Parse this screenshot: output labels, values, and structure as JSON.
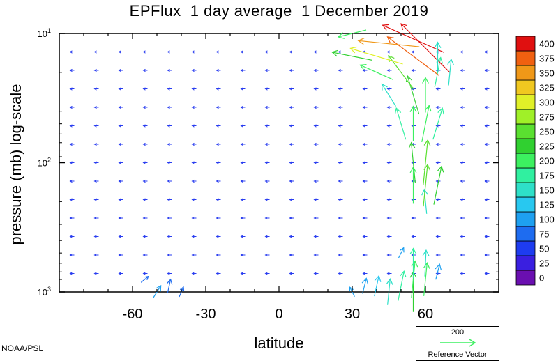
{
  "chart_data": {
    "type": "vector-field",
    "title": "EPFlux  1 day average  1 December 2019",
    "xlabel": "latitude",
    "ylabel": "pressure (mb)  log-scale",
    "xlim": [
      -90,
      90
    ],
    "ylim": [
      1000,
      10
    ],
    "y_scale": "log",
    "x_ticks": [
      -60,
      -30,
      0,
      30,
      60
    ],
    "x_tick_labels": [
      "-60",
      "-30",
      "0",
      "30",
      "60"
    ],
    "y_ticks": [
      10,
      100,
      1000
    ],
    "y_tick_labels": [
      {
        "base": "10",
        "exp": "1"
      },
      {
        "base": "10",
        "exp": "2"
      },
      {
        "base": "10",
        "exp": "3"
      }
    ],
    "colorbar": {
      "levels": [
        "0",
        "25",
        "50",
        "75",
        "100",
        "125",
        "150",
        "175",
        "200",
        "225",
        "250",
        "275",
        "300",
        "325",
        "350",
        "375",
        "400"
      ],
      "colors": [
        "#6a0fb0",
        "#3a1fe0",
        "#1e3cf0",
        "#1e6cf0",
        "#1ea0f0",
        "#28c8f0",
        "#2ee0c8",
        "#30f0a0",
        "#3cf060",
        "#30d030",
        "#5ae030",
        "#a0f028",
        "#e0f028",
        "#f0c820",
        "#f09818",
        "#f06010",
        "#e01010"
      ]
    },
    "reference_vector": {
      "value": "200",
      "label": "Reference Vector",
      "color": "#3cf060"
    },
    "vectors": [
      {
        "lat": -50,
        "p": 1000,
        "u": 0.5,
        "v": -0.8,
        "mag": 90
      },
      {
        "lat": -45,
        "p": 900,
        "u": 0.2,
        "v": -0.9,
        "mag": 85
      },
      {
        "lat": -40,
        "p": 1000,
        "u": 0.3,
        "v": -0.7,
        "mag": 80
      },
      {
        "lat": -55,
        "p": 800,
        "u": 0.6,
        "v": -0.5,
        "mag": 70
      },
      {
        "lat": 30,
        "p": 1000,
        "u": -0.3,
        "v": -0.6,
        "mag": 90
      },
      {
        "lat": 35,
        "p": 900,
        "u": 0.2,
        "v": -0.8,
        "mag": 110
      },
      {
        "lat": 40,
        "p": 900,
        "u": 0.2,
        "v": -0.9,
        "mag": 130
      },
      {
        "lat": 45,
        "p": 1000,
        "u": 0.1,
        "v": -1,
        "mag": 150
      },
      {
        "lat": 50,
        "p": 900,
        "u": 0.2,
        "v": -1,
        "mag": 170
      },
      {
        "lat": 55,
        "p": 1000,
        "u": 0,
        "v": -1,
        "mag": 230
      },
      {
        "lat": 55,
        "p": 800,
        "u": 0.1,
        "v": -1,
        "mag": 210
      },
      {
        "lat": 60,
        "p": 800,
        "u": 0.1,
        "v": -1,
        "mag": 190
      },
      {
        "lat": 55,
        "p": 600,
        "u": 0,
        "v": -1,
        "mag": 170
      },
      {
        "lat": 60,
        "p": 600,
        "u": 0.05,
        "v": -1,
        "mag": 150
      },
      {
        "lat": 65,
        "p": 700,
        "u": 0.2,
        "v": -0.8,
        "mag": 110
      },
      {
        "lat": 50,
        "p": 500,
        "u": 0.3,
        "v": -0.6,
        "mag": 100
      },
      {
        "lat": 60,
        "p": 200,
        "u": -0.1,
        "v": -1,
        "mag": 140
      },
      {
        "lat": 55,
        "p": 150,
        "u": 0,
        "v": -1,
        "mag": 210
      },
      {
        "lat": 60,
        "p": 150,
        "u": 0.1,
        "v": -1,
        "mag": 240
      },
      {
        "lat": 65,
        "p": 150,
        "u": 0.2,
        "v": -1,
        "mag": 220
      },
      {
        "lat": 55,
        "p": 100,
        "u": -0.1,
        "v": -1,
        "mag": 230
      },
      {
        "lat": 60,
        "p": 100,
        "u": 0.1,
        "v": -1,
        "mag": 260
      },
      {
        "lat": 50,
        "p": 50,
        "u": -0.3,
        "v": -1,
        "mag": 180
      },
      {
        "lat": 55,
        "p": 50,
        "u": 0,
        "v": -1,
        "mag": 200
      },
      {
        "lat": 60,
        "p": 50,
        "u": 0.2,
        "v": -1,
        "mag": 210
      },
      {
        "lat": 65,
        "p": 50,
        "u": 0.3,
        "v": -1,
        "mag": 180
      },
      {
        "lat": 45,
        "p": 30,
        "u": -0.5,
        "v": -0.8,
        "mag": 160
      },
      {
        "lat": 55,
        "p": 30,
        "u": -0.3,
        "v": -1,
        "mag": 220
      },
      {
        "lat": 60,
        "p": 30,
        "u": 0,
        "v": -1,
        "mag": 200
      },
      {
        "lat": 65,
        "p": 20,
        "u": 0.2,
        "v": -1,
        "mag": 170
      },
      {
        "lat": 40,
        "p": 20,
        "u": -0.9,
        "v": -0.4,
        "mag": 210
      },
      {
        "lat": 50,
        "p": 20,
        "u": -0.6,
        "v": -0.8,
        "mag": 240
      },
      {
        "lat": 30,
        "p": 15,
        "u": -1,
        "v": -0.2,
        "mag": 230
      },
      {
        "lat": 40,
        "p": 15,
        "u": -1,
        "v": -0.3,
        "mag": 300
      },
      {
        "lat": 55,
        "p": 15,
        "u": -0.8,
        "v": -0.6,
        "mag": 370
      },
      {
        "lat": 60,
        "p": 13,
        "u": -0.7,
        "v": -0.7,
        "mag": 400
      },
      {
        "lat": 45,
        "p": 12,
        "u": -1,
        "v": -0.1,
        "mag": 350
      },
      {
        "lat": 55,
        "p": 11,
        "u": -0.9,
        "v": -0.4,
        "mag": 390
      },
      {
        "lat": 30,
        "p": 10,
        "u": -0.8,
        "v": 0.2,
        "mag": 200
      },
      {
        "lat": 65,
        "p": 15,
        "u": 0,
        "v": -1,
        "mag": 160
      },
      {
        "lat": 70,
        "p": 20,
        "u": 0.1,
        "v": -1,
        "mag": 150
      }
    ]
  }
}
